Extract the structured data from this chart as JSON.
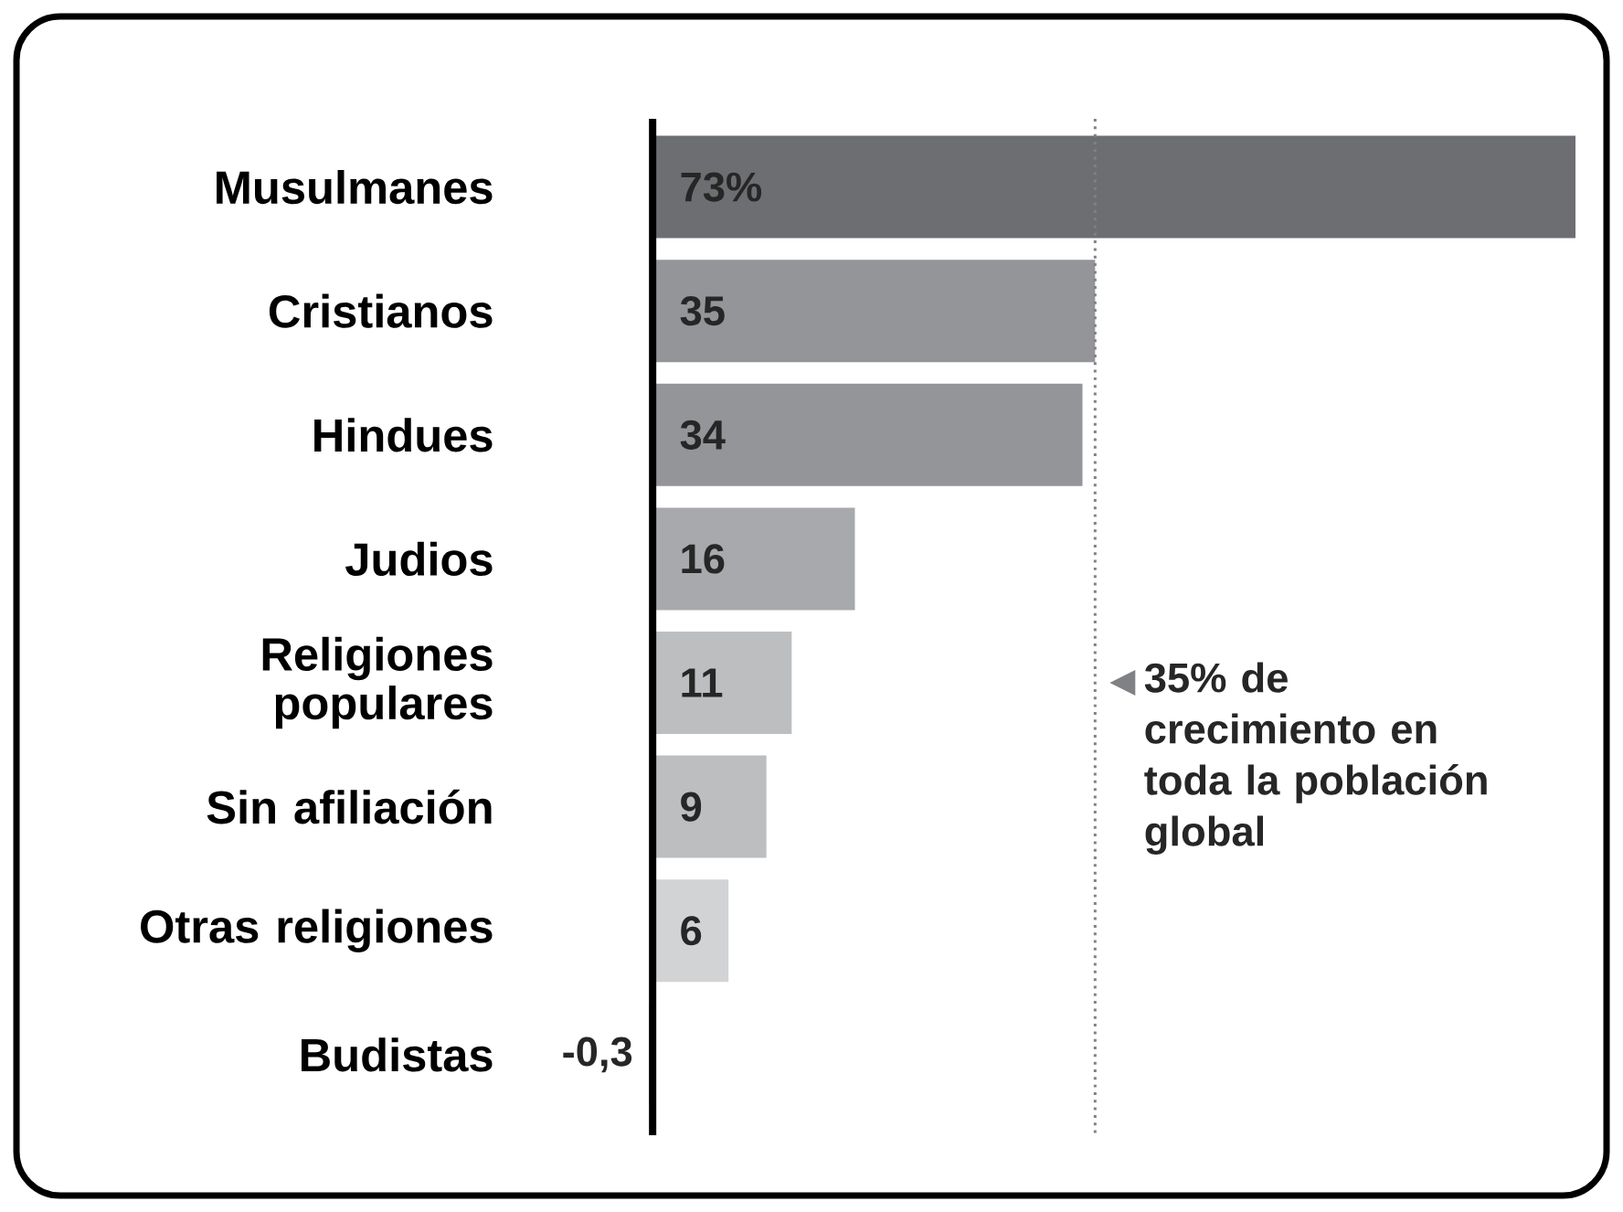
{
  "chart_data": {
    "type": "bar",
    "orientation": "horizontal",
    "categories": [
      "Musulmanes",
      "Cristianos",
      "Hindues",
      "Judios",
      "Religiones populares",
      "Sin afiliación",
      "Otras religiones",
      "Budistas"
    ],
    "values": [
      73,
      35,
      34,
      16,
      11,
      9,
      6,
      -0.3
    ],
    "value_labels": [
      "73%",
      "35",
      "34",
      "16",
      "11",
      "9",
      "6",
      "-0,3"
    ],
    "colors": [
      "#6d6e71",
      "#939598",
      "#939598",
      "#a7a9ac",
      "#bcbec0",
      "#bcbec0",
      "#d1d3d4",
      "#d1d3d4"
    ],
    "ref_lines": [
      {
        "axis": "x",
        "value": 35,
        "label": "35% de crecimiento en toda la población global",
        "color": "#808184",
        "line_style": "dotted"
      }
    ]
  }
}
